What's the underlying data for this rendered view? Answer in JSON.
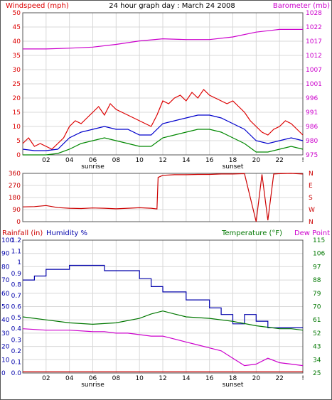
{
  "colors": {
    "wind_max": "#dd0000",
    "wind_avg": "#0000cc",
    "wind_min": "#008800",
    "barometer": "#cc00cc",
    "direction": "#cc0000",
    "humidity": "#0000aa",
    "temperature": "#007700",
    "dew_point": "#cc00cc",
    "rainfall": "#cc0000",
    "grid": "#d8d8d8",
    "frame": "#555555"
  },
  "chart_data": [
    {
      "type": "line",
      "title": "24 hour graph day : March 24 2008",
      "left_label": "Windspeed (mph)",
      "right_label": "Barometer (mb)",
      "x_tick_labels": [
        "02",
        "04",
        "06",
        "08",
        "10",
        "12",
        "14",
        "16",
        "18",
        "20",
        "22",
        "!"
      ],
      "x_sub_labels": [
        {
          "at": "06",
          "text": "sunrise"
        },
        {
          "at": "18",
          "text": "sunset"
        }
      ],
      "x_range": [
        0,
        24
      ],
      "y_left_range": [
        0,
        50
      ],
      "y_left_ticks": [
        "0",
        "5",
        "10",
        "15",
        "20",
        "25",
        "30",
        "35",
        "40",
        "45",
        "50"
      ],
      "y_right_range": [
        975,
        1028
      ],
      "y_right_ticks": [
        "975",
        "980",
        "986",
        "991",
        "996",
        "1001",
        "1007",
        "1012",
        "1017",
        "1022",
        "1028"
      ],
      "series": [
        {
          "key": "wind_max",
          "axis": "left",
          "points": [
            [
              0,
              4
            ],
            [
              0.5,
              6
            ],
            [
              1,
              3
            ],
            [
              1.5,
              4
            ],
            [
              2,
              3
            ],
            [
              2.5,
              2
            ],
            [
              3,
              4
            ],
            [
              3.5,
              6
            ],
            [
              4,
              10
            ],
            [
              4.5,
              12
            ],
            [
              5,
              11
            ],
            [
              5.5,
              13
            ],
            [
              6,
              15
            ],
            [
              6.5,
              17
            ],
            [
              7,
              14
            ],
            [
              7.5,
              18
            ],
            [
              8,
              16
            ],
            [
              8.5,
              15
            ],
            [
              9,
              14
            ],
            [
              9.5,
              13
            ],
            [
              10,
              12
            ],
            [
              10.5,
              11
            ],
            [
              11,
              10
            ],
            [
              11.5,
              14
            ],
            [
              12,
              19
            ],
            [
              12.5,
              18
            ],
            [
              13,
              20
            ],
            [
              13.5,
              21
            ],
            [
              14,
              19
            ],
            [
              14.5,
              22
            ],
            [
              15,
              20
            ],
            [
              15.5,
              23
            ],
            [
              16,
              21
            ],
            [
              16.5,
              20
            ],
            [
              17,
              19
            ],
            [
              17.5,
              18
            ],
            [
              18,
              19
            ],
            [
              18.5,
              17
            ],
            [
              19,
              15
            ],
            [
              19.5,
              12
            ],
            [
              20,
              10
            ],
            [
              20.5,
              8
            ],
            [
              21,
              7
            ],
            [
              21.5,
              9
            ],
            [
              22,
              10
            ],
            [
              22.5,
              12
            ],
            [
              23,
              11
            ],
            [
              23.5,
              9
            ],
            [
              24,
              7
            ]
          ]
        },
        {
          "key": "wind_avg",
          "axis": "left",
          "points": [
            [
              0,
              2
            ],
            [
              1,
              1.5
            ],
            [
              2,
              1.5
            ],
            [
              3,
              2
            ],
            [
              4,
              6
            ],
            [
              5,
              8
            ],
            [
              6,
              9
            ],
            [
              7,
              10
            ],
            [
              8,
              9
            ],
            [
              9,
              9
            ],
            [
              10,
              7
            ],
            [
              11,
              7
            ],
            [
              12,
              11
            ],
            [
              13,
              12
            ],
            [
              14,
              13
            ],
            [
              15,
              14
            ],
            [
              16,
              14
            ],
            [
              17,
              13
            ],
            [
              18,
              11
            ],
            [
              19,
              9
            ],
            [
              20,
              5
            ],
            [
              21,
              4
            ],
            [
              22,
              5
            ],
            [
              23,
              6
            ],
            [
              24,
              5
            ]
          ]
        },
        {
          "key": "wind_min",
          "axis": "left",
          "points": [
            [
              0,
              0
            ],
            [
              1,
              0
            ],
            [
              2,
              0
            ],
            [
              3,
              0.5
            ],
            [
              4,
              2
            ],
            [
              5,
              4
            ],
            [
              6,
              5
            ],
            [
              7,
              6
            ],
            [
              8,
              5
            ],
            [
              9,
              4
            ],
            [
              10,
              3
            ],
            [
              11,
              3
            ],
            [
              12,
              6
            ],
            [
              13,
              7
            ],
            [
              14,
              8
            ],
            [
              15,
              9
            ],
            [
              16,
              9
            ],
            [
              17,
              8
            ],
            [
              18,
              6
            ],
            [
              19,
              4
            ],
            [
              20,
              1
            ],
            [
              21,
              1
            ],
            [
              22,
              2
            ],
            [
              23,
              3
            ],
            [
              24,
              2
            ]
          ]
        },
        {
          "key": "barometer",
          "axis": "right",
          "points": [
            [
              0,
              1014.5
            ],
            [
              2,
              1014.5
            ],
            [
              4,
              1014.8
            ],
            [
              6,
              1015.2
            ],
            [
              8,
              1016.2
            ],
            [
              10,
              1017.5
            ],
            [
              12,
              1018.3
            ],
            [
              14,
              1018.0
            ],
            [
              16,
              1018.0
            ],
            [
              18,
              1019.0
            ],
            [
              20,
              1020.8
            ],
            [
              22,
              1021.8
            ],
            [
              24,
              1021.8
            ]
          ]
        }
      ]
    },
    {
      "type": "line",
      "title": "",
      "y_left_ticks": [
        "0",
        "90",
        "180",
        "270",
        "360"
      ],
      "y_left_range": [
        0,
        360
      ],
      "y_right_labels": [
        "N",
        "W",
        "S",
        "E",
        "N"
      ],
      "x_range": [
        0,
        24
      ],
      "series": [
        {
          "key": "direction",
          "axis": "left",
          "points": [
            [
              0,
              110
            ],
            [
              1,
              112
            ],
            [
              2,
              120
            ],
            [
              3,
              105
            ],
            [
              4,
              100
            ],
            [
              5,
              98
            ],
            [
              6,
              102
            ],
            [
              7,
              100
            ],
            [
              8,
              96
            ],
            [
              9,
              100
            ],
            [
              10,
              104
            ],
            [
              11,
              100
            ],
            [
              11.5,
              95
            ],
            [
              11.6,
              330
            ],
            [
              12,
              345
            ],
            [
              13,
              350
            ],
            [
              14,
              350
            ],
            [
              15,
              352
            ],
            [
              16,
              352
            ],
            [
              17,
              355
            ],
            [
              18,
              355
            ],
            [
              19,
              358
            ],
            [
              20,
              0
            ],
            [
              20.5,
              352
            ],
            [
              21,
              10
            ],
            [
              21.5,
              355
            ],
            [
              22,
              358
            ],
            [
              23,
              360
            ],
            [
              24,
              355
            ]
          ]
        }
      ]
    },
    {
      "type": "line",
      "left_labels": [
        "Rainfall (in)",
        "Humidity %"
      ],
      "right_labels": [
        "Temperature (°F)",
        "Dew Point"
      ],
      "x_tick_labels": [
        "02",
        "04",
        "06",
        "08",
        "10",
        "12",
        "14",
        "16",
        "18",
        "20",
        "22",
        "!"
      ],
      "x_sub_labels": [
        {
          "at": "06",
          "text": "sunrise"
        },
        {
          "at": "18",
          "text": "sunset"
        }
      ],
      "x_range": [
        0,
        24
      ],
      "y_humidity_range": [
        0,
        100
      ],
      "y_humidity_ticks": [
        "0",
        "10",
        "20",
        "30",
        "40",
        "50",
        "60",
        "70",
        "80",
        "90",
        "100"
      ],
      "y_rain_range": [
        0,
        1.2
      ],
      "y_rain_ticks": [
        "0.0",
        "0.1",
        "0.2",
        "0.3",
        "0.4",
        "0.5",
        "0.6",
        "0.7",
        "0.8",
        "0.9",
        "1",
        "1.1",
        "1.2"
      ],
      "y_temp_range": [
        25,
        115
      ],
      "y_temp_ticks": [
        "25",
        "34",
        "43",
        "52",
        "61",
        "70",
        "79",
        "88",
        "97",
        "106",
        "115"
      ],
      "series": [
        {
          "key": "humidity",
          "axis": "humidity",
          "points": [
            [
              0,
              70
            ],
            [
              1,
              70
            ],
            [
              1,
              73
            ],
            [
              2,
              73
            ],
            [
              2,
              78
            ],
            [
              4,
              78
            ],
            [
              4,
              81
            ],
            [
              7,
              81
            ],
            [
              7,
              77
            ],
            [
              10,
              77
            ],
            [
              10,
              71
            ],
            [
              11,
              71
            ],
            [
              11,
              65
            ],
            [
              12,
              65
            ],
            [
              12,
              61
            ],
            [
              14,
              61
            ],
            [
              14,
              55
            ],
            [
              16,
              55
            ],
            [
              16,
              49
            ],
            [
              17,
              49
            ],
            [
              17,
              44
            ],
            [
              18,
              44
            ],
            [
              18,
              37
            ],
            [
              19,
              37
            ],
            [
              19,
              44
            ],
            [
              20,
              44
            ],
            [
              20,
              39
            ],
            [
              21,
              39
            ],
            [
              21,
              34
            ],
            [
              24,
              34
            ]
          ]
        },
        {
          "key": "temperature",
          "axis": "temp",
          "points": [
            [
              0,
              63
            ],
            [
              2,
              61
            ],
            [
              4,
              59
            ],
            [
              6,
              58
            ],
            [
              8,
              59
            ],
            [
              10,
              62
            ],
            [
              11,
              65
            ],
            [
              12,
              67
            ],
            [
              13,
              65
            ],
            [
              14,
              63
            ],
            [
              16,
              62
            ],
            [
              18,
              60
            ],
            [
              20,
              57
            ],
            [
              22,
              55
            ],
            [
              23,
              55
            ],
            [
              24,
              54
            ]
          ]
        },
        {
          "key": "dew_point",
          "axis": "temp",
          "points": [
            [
              0,
              55
            ],
            [
              2,
              54
            ],
            [
              4,
              54
            ],
            [
              6,
              53
            ],
            [
              7,
              53
            ],
            [
              8,
              52
            ],
            [
              9,
              52
            ],
            [
              10,
              51
            ],
            [
              11,
              50
            ],
            [
              12,
              50
            ],
            [
              13,
              48
            ],
            [
              14,
              46
            ],
            [
              15,
              44
            ],
            [
              16,
              42
            ],
            [
              17,
              40
            ],
            [
              18,
              35
            ],
            [
              19,
              30
            ],
            [
              20,
              31
            ],
            [
              21,
              35
            ],
            [
              22,
              32
            ],
            [
              23,
              31
            ],
            [
              24,
              30
            ]
          ]
        },
        {
          "key": "rainfall",
          "axis": "rain",
          "points": [
            [
              0,
              0.01
            ],
            [
              24,
              0.01
            ]
          ]
        }
      ]
    }
  ]
}
